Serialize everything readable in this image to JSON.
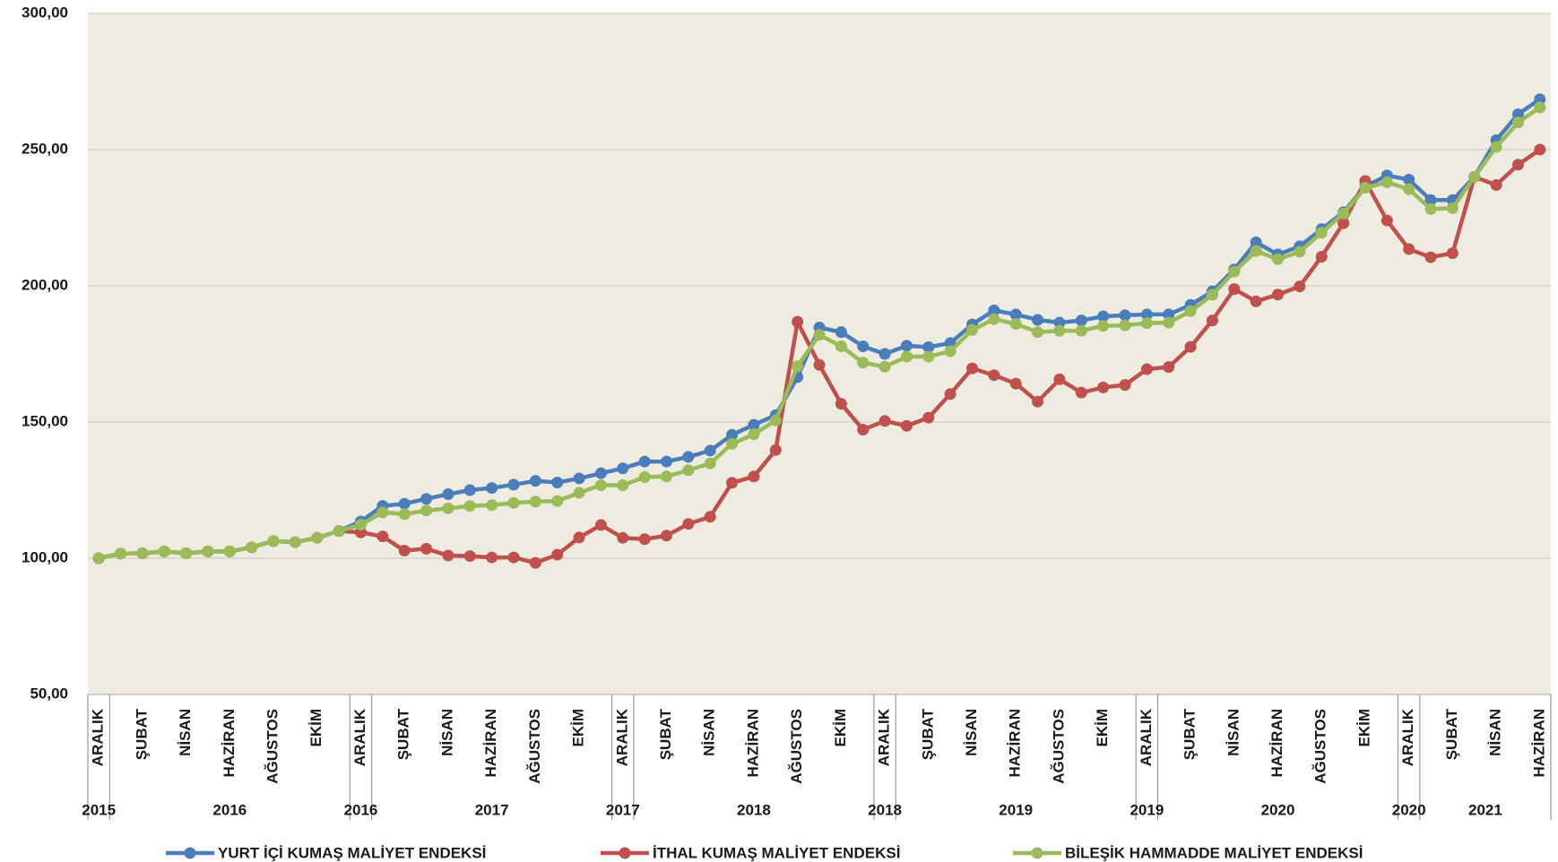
{
  "chart_data": {
    "type": "line",
    "categories": [
      "ARALIK",
      null,
      "ŞUBAT",
      null,
      "NİSAN",
      null,
      "HAZİRAN",
      null,
      "AĞUSTOS",
      null,
      "EKİM",
      null,
      "ARALIK",
      null,
      "ŞUBAT",
      null,
      "NİSAN",
      null,
      "HAZİRAN",
      null,
      "AĞUSTOS",
      null,
      "EKİM",
      null,
      "ARALIK",
      null,
      "ŞUBAT",
      null,
      "NİSAN",
      null,
      "HAZİRAN",
      null,
      "AĞUSTOS",
      null,
      "EKİM",
      null,
      "ARALIK",
      null,
      "ŞUBAT",
      null,
      "NİSAN",
      null,
      "HAZİRAN",
      null,
      "AĞUSTOS",
      null,
      "EKİM",
      null,
      "ARALIK",
      null,
      "ŞUBAT",
      null,
      "NİSAN",
      null,
      "HAZİRAN",
      null,
      "AĞUSTOS",
      null,
      "EKİM",
      null,
      "ARALIK",
      null,
      "ŞUBAT",
      null,
      "NİSAN",
      null,
      "HAZİRAN"
    ],
    "x_groups": [
      {
        "label": "2015",
        "count": 1
      },
      {
        "label": "2016",
        "count": 11
      },
      {
        "label": "2016",
        "count": 1
      },
      {
        "label": "2017",
        "count": 11
      },
      {
        "label": "2017",
        "count": 1
      },
      {
        "label": "2018",
        "count": 11
      },
      {
        "label": "2018",
        "count": 1
      },
      {
        "label": "2019",
        "count": 11
      },
      {
        "label": "2019",
        "count": 1
      },
      {
        "label": "2020",
        "count": 11
      },
      {
        "label": "2020",
        "count": 1
      },
      {
        "label": "2021",
        "count": 6
      }
    ],
    "series": [
      {
        "name": "YURT İÇİ KUMAŞ MALİYET ENDEKSİ",
        "color": "#4a7ebb",
        "values": [
          100,
          101.7,
          101.8,
          102.5,
          101.8,
          102.5,
          102.5,
          104,
          106.3,
          105.9,
          107.5,
          110,
          113.5,
          119.2,
          120,
          121.8,
          123.5,
          125,
          125.8,
          127,
          128.4,
          127.8,
          129.3,
          131.2,
          133,
          135.5,
          135.5,
          137.2,
          139.5,
          145.3,
          149,
          152.5,
          166.5,
          184.7,
          183,
          177.8,
          175,
          178,
          177.5,
          179,
          185.8,
          191,
          189.5,
          187.5,
          186.5,
          187.3,
          188.8,
          189.2,
          189.5,
          189.5,
          193,
          198,
          206,
          216,
          211.5,
          214.5,
          220.8,
          227,
          236.5,
          240.5,
          239,
          231.5,
          231.5,
          240,
          253.5,
          263,
          268.5
        ]
      },
      {
        "name": "İTHAL KUMAŞ MALİYET ENDEKSİ",
        "color": "#c0504d",
        "values": [
          100,
          101.7,
          101.8,
          102.5,
          101.8,
          102.5,
          102.5,
          104,
          106.3,
          105.9,
          107.5,
          110,
          109.5,
          108,
          102.8,
          103.5,
          101,
          100.8,
          100.3,
          100.3,
          98.3,
          101.3,
          107.6,
          112.2,
          107.5,
          107,
          108.3,
          112.6,
          115.2,
          127.7,
          130,
          139.7,
          186.8,
          171,
          156.7,
          147.2,
          150.4,
          148.6,
          151.6,
          160.3,
          169.7,
          167.2,
          164.1,
          157.5,
          165.7,
          160.8,
          162.7,
          163.6,
          169.4,
          170.2,
          177.6,
          187.3,
          198.8,
          194.3,
          196.8,
          199.8,
          210.7,
          223,
          238.5,
          224,
          213.5,
          210.5,
          212,
          240,
          237,
          244.5,
          250
        ]
      },
      {
        "name": "BİLEŞİK HAMMADDE MALİYET ENDEKSİ",
        "color": "#9bbb59",
        "values": [
          100,
          101.7,
          101.8,
          102.5,
          101.8,
          102.5,
          102.5,
          104,
          106.3,
          105.9,
          107.5,
          110,
          112.3,
          116.8,
          116.2,
          117.5,
          118.3,
          119.2,
          119.5,
          120.3,
          120.8,
          121,
          124,
          126.8,
          126.8,
          129.8,
          130,
          132.3,
          134.8,
          142,
          145.5,
          150.6,
          170.5,
          182,
          177.8,
          171.8,
          170.3,
          174,
          174,
          176,
          183.8,
          187.8,
          186,
          183,
          183.5,
          183.5,
          185.3,
          185.5,
          186.3,
          186.5,
          190.7,
          196.7,
          205.2,
          212.8,
          209.8,
          212.5,
          219.5,
          226.5,
          236,
          238,
          235.5,
          228.2,
          228.5,
          240,
          251,
          260,
          265.5
        ]
      }
    ],
    "ylim": [
      50,
      300
    ],
    "yticks": [
      {
        "value": 50,
        "label": "50,00"
      },
      {
        "value": 100,
        "label": "100,00"
      },
      {
        "value": 150,
        "label": "150,00"
      },
      {
        "value": 200,
        "label": "200,00"
      },
      {
        "value": 250,
        "label": "250,00"
      },
      {
        "value": 300,
        "label": "300,00"
      }
    ],
    "grid": true,
    "plot_background": "#eeebe0"
  }
}
